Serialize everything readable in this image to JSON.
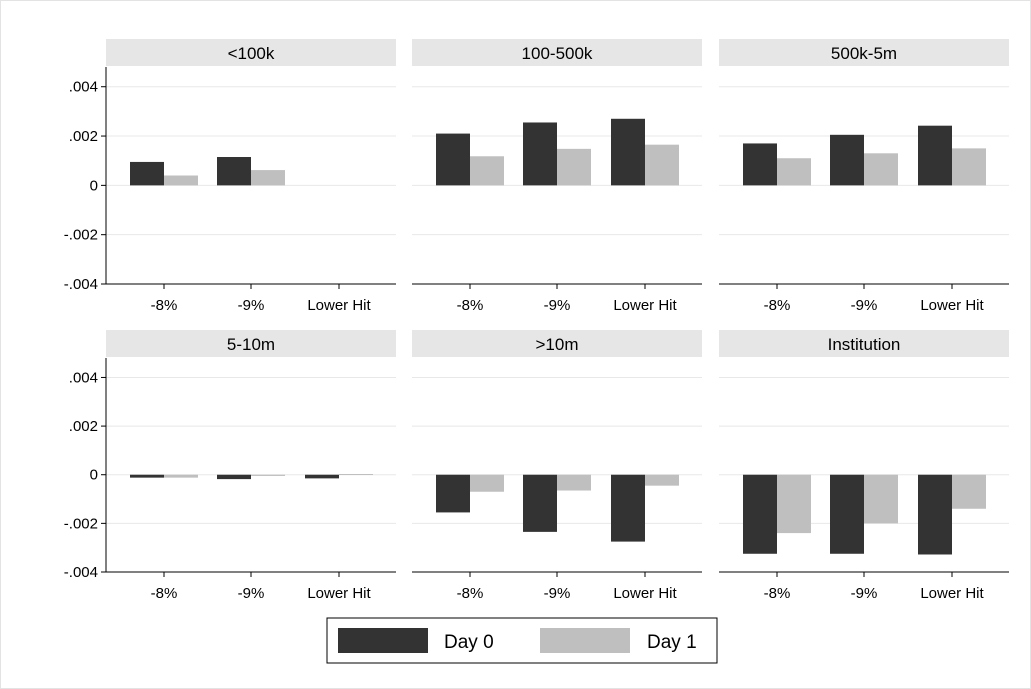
{
  "chart_data": {
    "type": "bar",
    "categories": [
      "-8%",
      "-9%",
      "Lower Hit"
    ],
    "y_ticks": [
      ".004",
      ".002",
      "0",
      "-.002",
      "-.004"
    ],
    "ylim": [
      -0.004,
      0.0048
    ],
    "grid": true,
    "legend_placement": "bottom-center",
    "series": [
      {
        "name": "Day 0",
        "color": "#333333"
      },
      {
        "name": "Day 1",
        "color": "#bfbfbf"
      }
    ],
    "panels": [
      {
        "title": "<100k",
        "values": {
          "Day 0": [
            0.00095,
            0.00115,
            null
          ],
          "Day 1": [
            0.0004,
            0.00062,
            null
          ]
        }
      },
      {
        "title": "100-500k",
        "values": {
          "Day 0": [
            0.0021,
            0.00255,
            0.0027
          ],
          "Day 1": [
            0.00118,
            0.00148,
            0.00165
          ]
        }
      },
      {
        "title": "500k-5m",
        "values": {
          "Day 0": [
            0.0017,
            0.00205,
            0.00242
          ],
          "Day 1": [
            0.0011,
            0.0013,
            0.0015
          ]
        }
      },
      {
        "title": "5-10m",
        "values": {
          "Day 0": [
            -0.00012,
            -0.00018,
            -0.00015
          ],
          "Day 1": [
            -0.00012,
            -5e-05,
            3e-05
          ]
        }
      },
      {
        "title": ">10m",
        "values": {
          "Day 0": [
            -0.00155,
            -0.00235,
            -0.00275
          ],
          "Day 1": [
            -0.0007,
            -0.00065,
            -0.00045
          ]
        }
      },
      {
        "title": "Institution",
        "values": {
          "Day 0": [
            -0.00325,
            -0.00325,
            -0.00328
          ],
          "Day 1": [
            -0.0024,
            -0.002,
            -0.0014
          ]
        }
      }
    ]
  }
}
